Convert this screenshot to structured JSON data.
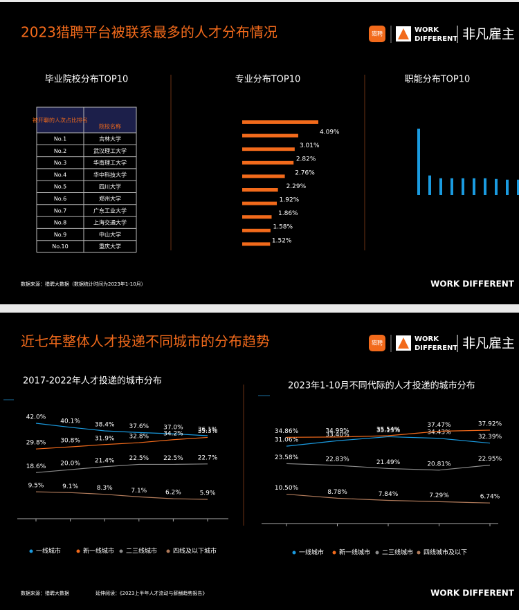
{
  "header": {
    "logo": "猎聘",
    "work": "WORK",
    "different": "DIFFERENT",
    "brand": "非凡雇主",
    "footer_brand": "WORK DIFFERENT"
  },
  "slide1": {
    "title": "2023猎聘平台被联系最多的人才分布情况",
    "source": "数据来源：猎聘大数据（数据统计时间为2023年1-10月）",
    "school": {
      "title": "毕业院校分布TOP10",
      "headers": [
        "被开聊的人次占比排名",
        "院校名称"
      ],
      "rows": [
        [
          "No.1",
          "吉林大学"
        ],
        [
          "No.2",
          "武汉理工大学"
        ],
        [
          "No.3",
          "华南理工大学"
        ],
        [
          "No.4",
          "华中科技大学"
        ],
        [
          "No.5",
          "四川大学"
        ],
        [
          "No.6",
          "郑州大学"
        ],
        [
          "No.7",
          "广东工业大学"
        ],
        [
          "No.8",
          "上海交通大学"
        ],
        [
          "No.9",
          "中山大学"
        ],
        [
          "No.10",
          "重庆大学"
        ]
      ]
    }
  },
  "slide2": {
    "title": "近七年整体人才投递不同城市的分布趋势",
    "source": "数据来源：猎聘大数据",
    "reading": "延伸阅读：《2023上半年人才流动与薪酬趋势报告》"
  },
  "chart_data": [
    {
      "type": "hbar",
      "title": "专业分布TOP10",
      "color": "#f26a1b",
      "values": [
        4.09,
        3.01,
        2.82,
        2.76,
        2.29,
        1.92,
        1.86,
        1.58,
        1.52,
        1.5
      ],
      "value_labels": [
        "4.09%",
        "3.01%",
        "2.82%",
        "2.76%",
        "2.29%",
        "1.92%",
        "1.86%",
        "1.58%",
        "1.52%",
        null
      ]
    },
    {
      "type": "vbar",
      "title": "职能分布TOP10",
      "color": "#1a9be0",
      "values": [
        9.5,
        2.8,
        2.4,
        2.4,
        2.4,
        2.4,
        2.4,
        2.3,
        2.2,
        2.2
      ]
    },
    {
      "type": "line",
      "title": "2017-2022年人才投递的城市分布",
      "series": [
        {
          "name": "一线城市",
          "color": "#1a9be0",
          "values": [
            42.0,
            40.1,
            38.4,
            37.6,
            37.0,
            36.1
          ],
          "value_labels": [
            "42.0%",
            "40.1%",
            "38.4%",
            "37.6%",
            "37.0%",
            "36.1%"
          ]
        },
        {
          "name": "新一线城市",
          "color": "#f26a1b",
          "values": [
            29.8,
            30.8,
            31.9,
            32.8,
            34.2,
            35.3
          ],
          "value_labels": [
            "29.8%",
            "30.8%",
            "31.9%",
            "32.8%",
            "34.2%",
            "35.3%"
          ]
        },
        {
          "name": "二三线城市",
          "color": "#8a8a8a",
          "values": [
            18.6,
            20.0,
            21.4,
            22.5,
            22.5,
            22.7
          ],
          "value_labels": [
            "18.6%",
            "20.0%",
            "21.4%",
            "22.5%",
            "22.5%",
            "22.7%"
          ]
        },
        {
          "name": "四线及以下城市",
          "color": "#b07a5a",
          "values": [
            9.5,
            9.1,
            8.3,
            7.1,
            6.2,
            5.9
          ],
          "value_labels": [
            "9.5%",
            "9.1%",
            "8.3%",
            "7.1%",
            "6.2%",
            "5.9%"
          ]
        }
      ]
    },
    {
      "type": "line",
      "title": "2023年1-10月不同代际的人才投递的城市分布",
      "series": [
        {
          "name": "一线城市",
          "color": "#1a9be0",
          "values": [
            31.06,
            33.4,
            35.13,
            34.43,
            32.39
          ],
          "value_labels": [
            "31.06%",
            "33.40%",
            "35.13%",
            "34.43%",
            "32.39%"
          ]
        },
        {
          "name": "新一线城市",
          "color": "#f26a1b",
          "values": [
            34.86,
            34.99,
            35.54,
            37.47,
            37.92
          ],
          "value_labels": [
            "34.86%",
            "34.99%",
            "35.54%",
            "37.47%",
            "37.92%"
          ]
        },
        {
          "name": "二三线城市",
          "color": "#8a8a8a",
          "values": [
            23.58,
            22.83,
            21.49,
            20.81,
            22.95
          ],
          "value_labels": [
            "23.58%",
            "22.83%",
            "21.49%",
            "20.81%",
            "22.95%"
          ]
        },
        {
          "name": "四线城市及以下",
          "color": "#b07a5a",
          "values": [
            10.5,
            8.78,
            7.84,
            7.29,
            6.74
          ],
          "value_labels": [
            "10.50%",
            "8.78%",
            "7.84%",
            "7.29%",
            "6.74%"
          ]
        }
      ]
    }
  ]
}
